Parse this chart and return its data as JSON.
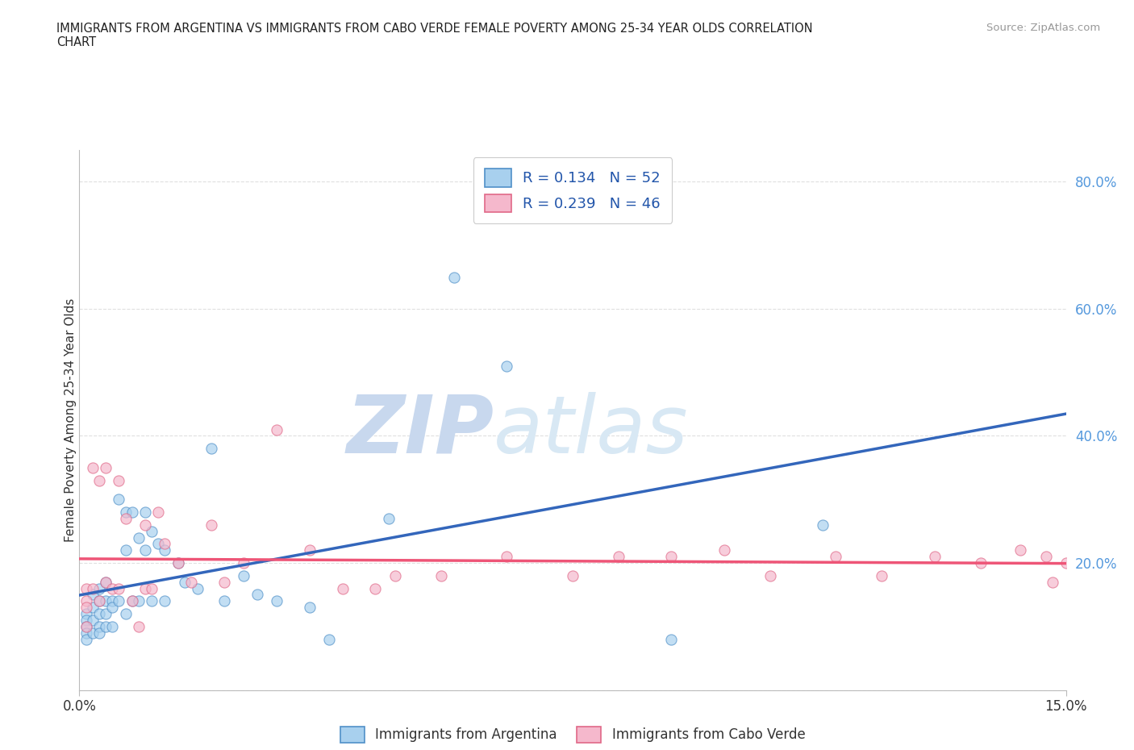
{
  "title": "IMMIGRANTS FROM ARGENTINA VS IMMIGRANTS FROM CABO VERDE FEMALE POVERTY AMONG 25-34 YEAR OLDS CORRELATION\nCHART",
  "source": "Source: ZipAtlas.com",
  "ylabel": "Female Poverty Among 25-34 Year Olds",
  "xlim": [
    0.0,
    0.15
  ],
  "ylim": [
    0.0,
    0.85
  ],
  "yticks": [
    0.0,
    0.2,
    0.4,
    0.6,
    0.8
  ],
  "ytick_labels": [
    "",
    "20.0%",
    "40.0%",
    "60.0%",
    "80.0%"
  ],
  "xticks": [
    0.0,
    0.15
  ],
  "xtick_labels": [
    "0.0%",
    "15.0%"
  ],
  "argentina_color": "#A8D0EE",
  "caboverde_color": "#F5B8CC",
  "argentina_edge_color": "#5090C8",
  "caboverde_edge_color": "#E06888",
  "argentina_line_color": "#3366BB",
  "caboverde_line_color": "#EE5577",
  "argentina_R": 0.134,
  "argentina_N": 52,
  "caboverde_R": 0.239,
  "caboverde_N": 46,
  "watermark_zip": "ZIP",
  "watermark_atlas": "atlas",
  "argentina_x": [
    0.001,
    0.001,
    0.001,
    0.001,
    0.001,
    0.002,
    0.002,
    0.002,
    0.002,
    0.003,
    0.003,
    0.003,
    0.003,
    0.003,
    0.004,
    0.004,
    0.004,
    0.004,
    0.005,
    0.005,
    0.005,
    0.006,
    0.006,
    0.007,
    0.007,
    0.007,
    0.008,
    0.008,
    0.009,
    0.009,
    0.01,
    0.01,
    0.011,
    0.011,
    0.012,
    0.013,
    0.013,
    0.015,
    0.016,
    0.018,
    0.02,
    0.022,
    0.025,
    0.027,
    0.03,
    0.035,
    0.038,
    0.047,
    0.057,
    0.065,
    0.09,
    0.113
  ],
  "argentina_y": [
    0.12,
    0.11,
    0.1,
    0.09,
    0.08,
    0.15,
    0.13,
    0.11,
    0.09,
    0.16,
    0.14,
    0.12,
    0.1,
    0.09,
    0.17,
    0.14,
    0.12,
    0.1,
    0.14,
    0.13,
    0.1,
    0.3,
    0.14,
    0.28,
    0.22,
    0.12,
    0.28,
    0.14,
    0.24,
    0.14,
    0.28,
    0.22,
    0.25,
    0.14,
    0.23,
    0.22,
    0.14,
    0.2,
    0.17,
    0.16,
    0.38,
    0.14,
    0.18,
    0.15,
    0.14,
    0.13,
    0.08,
    0.27,
    0.65,
    0.51,
    0.08,
    0.26
  ],
  "caboverde_x": [
    0.001,
    0.001,
    0.001,
    0.001,
    0.002,
    0.002,
    0.003,
    0.003,
    0.004,
    0.004,
    0.005,
    0.006,
    0.006,
    0.007,
    0.008,
    0.009,
    0.01,
    0.01,
    0.011,
    0.012,
    0.013,
    0.015,
    0.017,
    0.02,
    0.022,
    0.025,
    0.03,
    0.035,
    0.04,
    0.045,
    0.048,
    0.055,
    0.065,
    0.075,
    0.082,
    0.09,
    0.098,
    0.105,
    0.115,
    0.122,
    0.13,
    0.137,
    0.143,
    0.147,
    0.148,
    0.15
  ],
  "caboverde_y": [
    0.16,
    0.14,
    0.13,
    0.1,
    0.35,
    0.16,
    0.33,
    0.14,
    0.35,
    0.17,
    0.16,
    0.33,
    0.16,
    0.27,
    0.14,
    0.1,
    0.26,
    0.16,
    0.16,
    0.28,
    0.23,
    0.2,
    0.17,
    0.26,
    0.17,
    0.2,
    0.41,
    0.22,
    0.16,
    0.16,
    0.18,
    0.18,
    0.21,
    0.18,
    0.21,
    0.21,
    0.22,
    0.18,
    0.21,
    0.18,
    0.21,
    0.2,
    0.22,
    0.21,
    0.17,
    0.2
  ]
}
